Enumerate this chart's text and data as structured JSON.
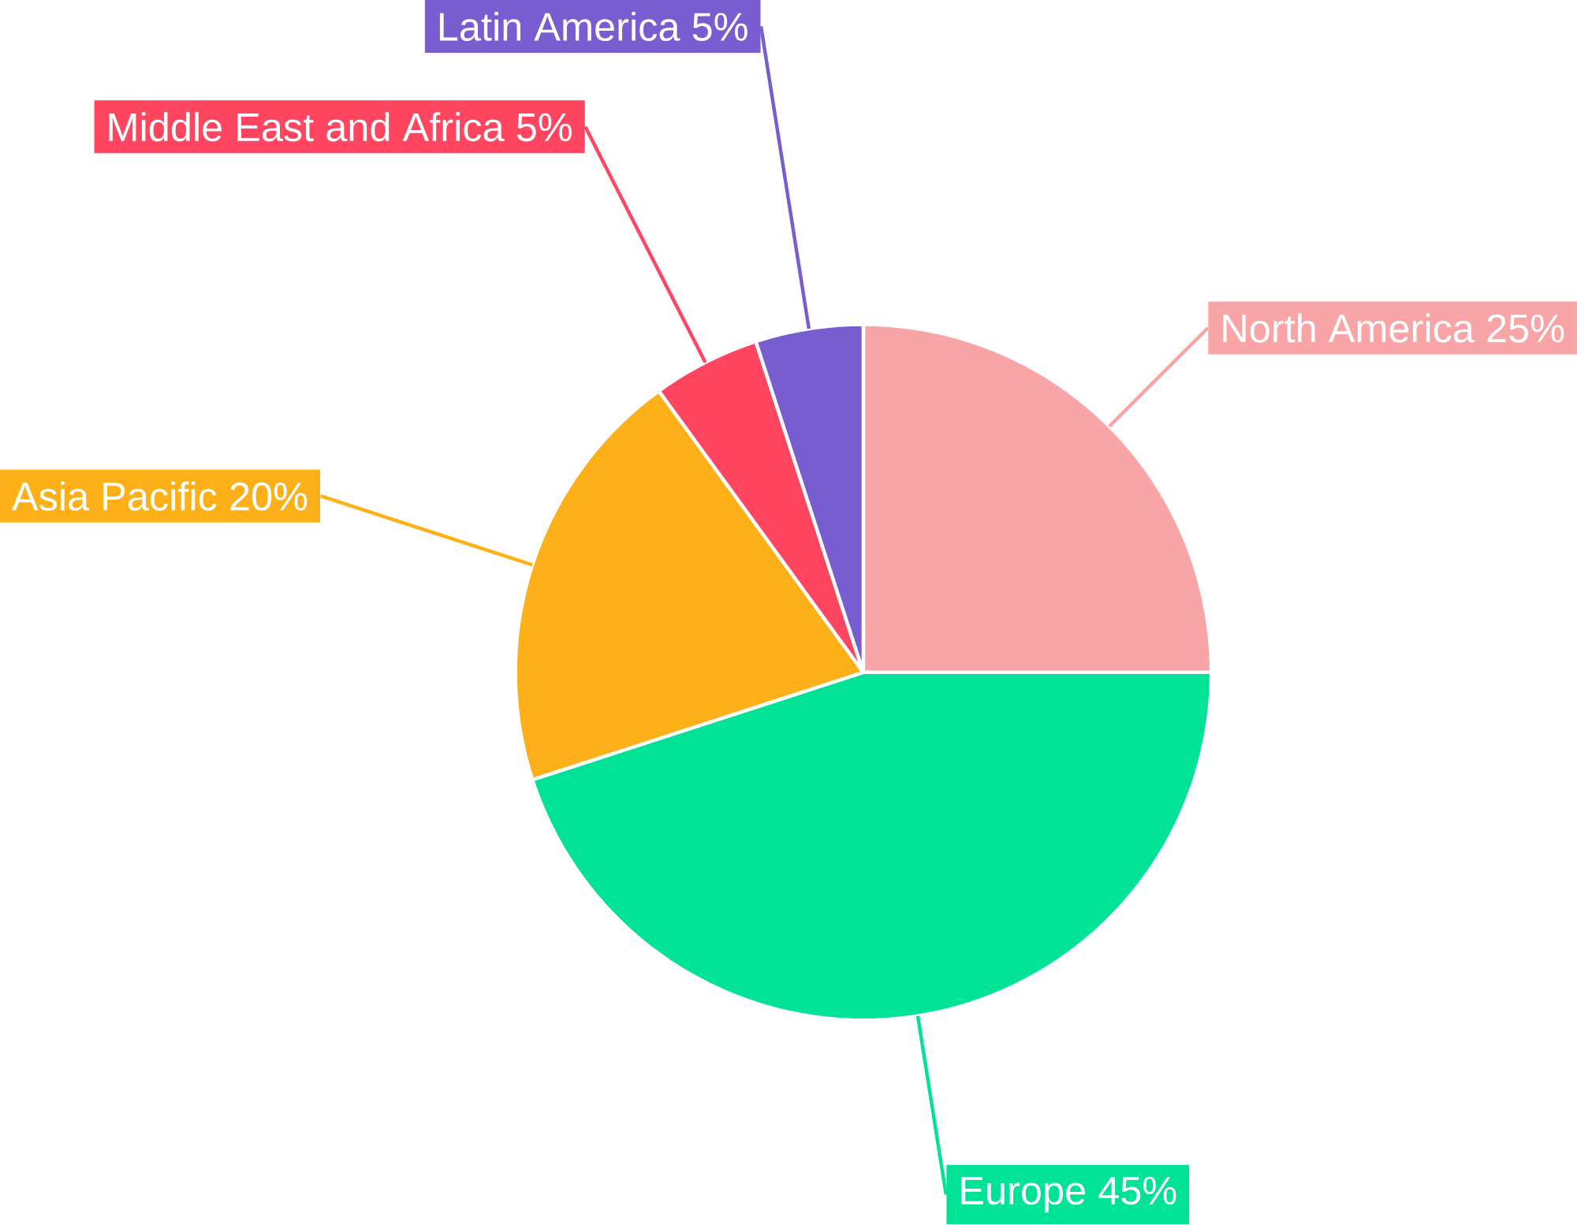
{
  "chart_data": {
    "type": "pie",
    "categories": [
      "North America",
      "Europe",
      "Asia Pacific",
      "Middle East and Africa",
      "Latin America"
    ],
    "values": [
      25,
      45,
      20,
      5,
      5
    ],
    "value_labels": [
      "25%",
      "45%",
      "20%",
      "5%",
      "5%"
    ],
    "colors": [
      "#f9a5a7",
      "#00e396",
      "#feb019",
      "#ff4560",
      "#775dd0"
    ]
  }
}
